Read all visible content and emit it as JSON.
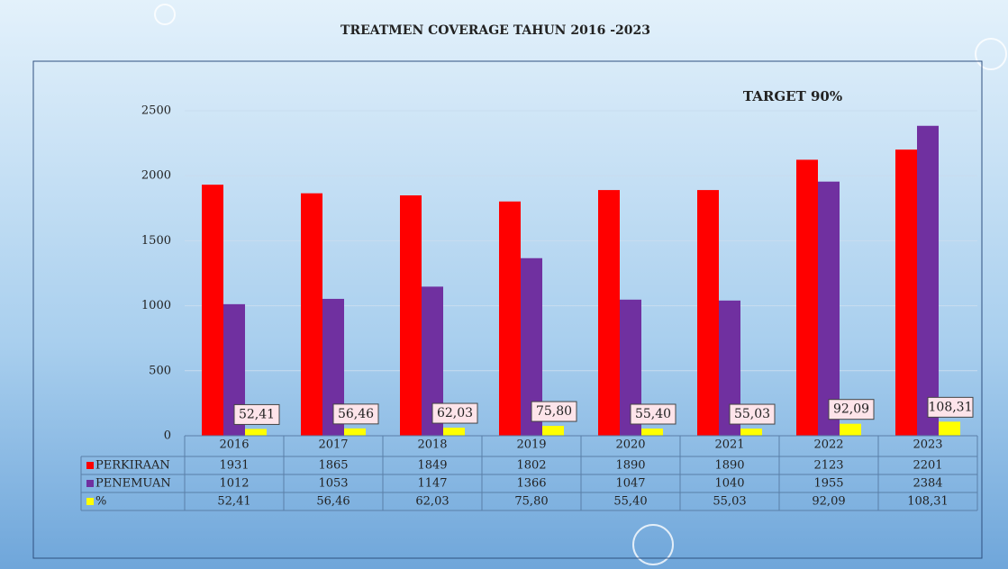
{
  "chart_data": {
    "type": "bar",
    "title": "TREATMEN COVERAGE TAHUN 2016 -2023",
    "annotation": "TARGET 90%",
    "categories": [
      "2016",
      "2017",
      "2018",
      "2019",
      "2020",
      "2021",
      "2022",
      "2023"
    ],
    "series": [
      {
        "name": "PERKIRAAN",
        "color": "#ff0000",
        "values": [
          1931,
          1865,
          1849,
          1802,
          1890,
          1890,
          2123,
          2201
        ]
      },
      {
        "name": "PENEMUAN",
        "color": "#7030a0",
        "values": [
          1012,
          1053,
          1147,
          1366,
          1047,
          1040,
          1955,
          2384
        ]
      },
      {
        "name": "%",
        "color": "#ffff00",
        "values": [
          52.41,
          56.46,
          62.03,
          75.8,
          55.4,
          55.03,
          92.09,
          108.31
        ],
        "value_labels": [
          "52,41",
          "56,46",
          "62,03",
          "75,80",
          "55,40",
          "55,03",
          "92,09",
          "108,31"
        ]
      }
    ],
    "ylim": [
      0,
      2500
    ],
    "yticks": [
      0,
      500,
      1000,
      1500,
      2000,
      2500
    ],
    "grid": true
  }
}
